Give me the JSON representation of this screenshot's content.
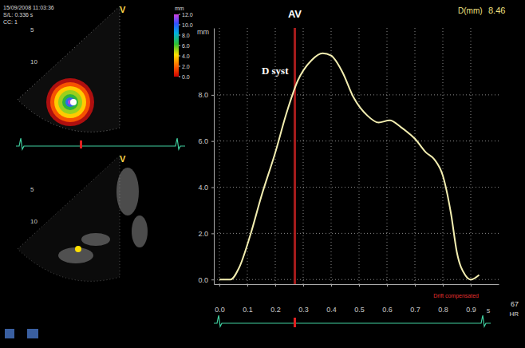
{
  "chart_data": {
    "type": "line",
    "x_label": "s",
    "y_label": "mm",
    "x": [
      0.0,
      0.04,
      0.07,
      0.11,
      0.15,
      0.2,
      0.24,
      0.28,
      0.33,
      0.37,
      0.4,
      0.44,
      0.48,
      0.53,
      0.57,
      0.61,
      0.65,
      0.7,
      0.74,
      0.77,
      0.8,
      0.83,
      0.85,
      0.88,
      0.9,
      0.93
    ],
    "values": [
      0.0,
      0.0,
      0.5,
      1.9,
      3.6,
      5.5,
      7.2,
      8.6,
      9.5,
      9.8,
      9.7,
      9.0,
      7.9,
      7.1,
      6.8,
      6.9,
      6.6,
      6.1,
      5.5,
      5.2,
      4.5,
      2.8,
      1.2,
      0.2,
      0.0,
      0.2
    ],
    "color": "#f3eeb0",
    "xlim": [
      -0.02,
      1.0
    ],
    "xticks": [
      {
        "value": 0,
        "label": "0.0"
      },
      0.1,
      0.2,
      0.3,
      0.4,
      0.5,
      0.6,
      0.7,
      0.8,
      0.9
    ],
    "ylim": [
      -0.2,
      10.9
    ],
    "yticks": [
      {
        "value": 0,
        "label": "0.0"
      },
      {
        "value": 2,
        "label": "2.0"
      },
      {
        "value": 4,
        "label": "4.0"
      },
      {
        "value": 6,
        "label": "6.0"
      },
      {
        "value": 8,
        "label": "8.0"
      }
    ],
    "grid": true,
    "annotations": [
      {
        "text": "AV",
        "x": 0.27
      },
      {
        "text": "D syst",
        "y": 8.9
      },
      {
        "text": "Drift compensated"
      }
    ],
    "readout": {
      "label": "D(mm)",
      "value": 8.46
    },
    "heart_rate": {
      "value": 67,
      "label": "HR"
    }
  },
  "screen": {
    "date": "15/09/2008 11:03:36",
    "sl": "S/L: 0.336 s",
    "cc": "CC: 1",
    "view_label": "V",
    "depth_marks": [
      5,
      10
    ],
    "colorbar": {
      "title": "mm",
      "range": [
        0,
        12
      ],
      "ticks": [
        {
          "value": 12,
          "label": "12.0"
        },
        {
          "value": 10,
          "label": "10.0"
        },
        {
          "value": 8,
          "label": "8.0"
        },
        {
          "value": 6,
          "label": "6.0"
        },
        {
          "value": 4,
          "label": "4.0"
        },
        {
          "value": 2,
          "label": "2.0"
        },
        {
          "value": 0,
          "label": "0.0"
        }
      ]
    }
  }
}
